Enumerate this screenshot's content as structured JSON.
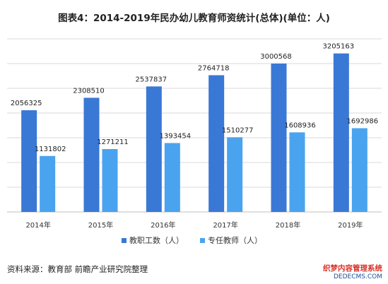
{
  "title": "图表4：2014-2019年民办幼儿教育师资统计(总体)(单位：人)",
  "source": "资料来源：教育部 前瞻产业研究院整理",
  "watermark": {
    "line1": "织梦内容管理系统",
    "line2": "DEDECMS.COM"
  },
  "colors": {
    "series1": "#3a78d6",
    "series2": "#4aa3ef",
    "grid": "#d9d9d9",
    "axis": "#bfbfbf"
  },
  "chart_data": {
    "type": "bar",
    "title": "图表4：2014-2019年民办幼儿教育师资统计(总体)(单位：人)",
    "categories": [
      "2014年",
      "2015年",
      "2016年",
      "2017年",
      "2018年",
      "2019年"
    ],
    "series": [
      {
        "name": "教职工数（人）",
        "values": [
          2056325,
          2308510,
          2537837,
          2764718,
          3000568,
          3205163
        ]
      },
      {
        "name": "专任教师（人）",
        "values": [
          1131802,
          1271211,
          1393454,
          1510277,
          1608936,
          1692986
        ]
      }
    ],
    "ylim": [
      0,
      3500000
    ],
    "grid": true,
    "legend": "bottom"
  }
}
